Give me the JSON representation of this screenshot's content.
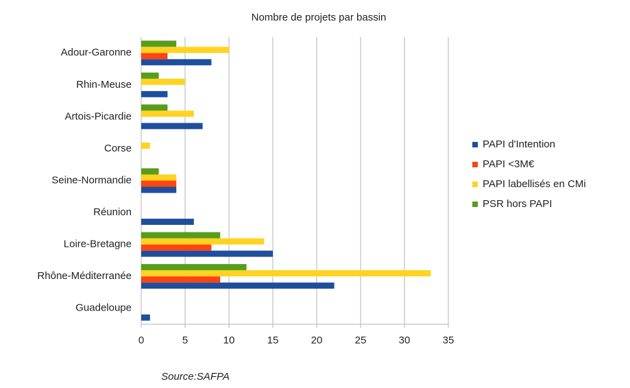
{
  "chart_data": {
    "type": "hbar",
    "title": "Nombre de projets par bassin",
    "categories": [
      "Adour-Garonne",
      "Rhin-Meuse",
      "Artois-Picardie",
      "Corse",
      "Seine-Normandie",
      "Réunion",
      "Loire-Bretagne",
      "Rhône-Méditerranée",
      "Guadeloupe"
    ],
    "series": [
      {
        "name": "PAPI d'Intention",
        "color": "#1f4e9c",
        "values": [
          8,
          3,
          7,
          0,
          4,
          6,
          15,
          22,
          1
        ]
      },
      {
        "name": "PAPI <3M€",
        "color": "#ff4411",
        "values": [
          3,
          0,
          0,
          0,
          4,
          0,
          8,
          9,
          0
        ]
      },
      {
        "name": "PAPI labellisés en CMi",
        "color": "#ffd320",
        "values": [
          10,
          5,
          6,
          1,
          4,
          0,
          14,
          33,
          0
        ]
      },
      {
        "name": "PSR hors PAPI",
        "color": "#579d1c",
        "values": [
          4,
          2,
          3,
          0,
          2,
          0,
          9,
          12,
          0
        ]
      }
    ],
    "xlim": [
      0,
      35
    ],
    "xticks": [
      0,
      5,
      10,
      15,
      20,
      25,
      30,
      35
    ],
    "grid": true,
    "annotation": "Source:SAFPA"
  }
}
